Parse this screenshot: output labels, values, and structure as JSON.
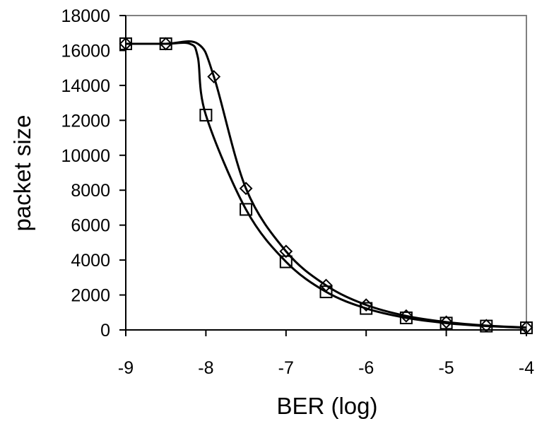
{
  "chart_data": {
    "type": "line",
    "title": "",
    "xlabel": "BER (log)",
    "ylabel": "packet size",
    "xlim": [
      -9,
      -4
    ],
    "ylim": [
      0,
      18000
    ],
    "xticks": [
      -9,
      -8,
      -7,
      -6,
      -5,
      -4
    ],
    "yticks": [
      0,
      2000,
      4000,
      6000,
      8000,
      10000,
      12000,
      14000,
      16000,
      18000
    ],
    "grid": false,
    "legend": "none",
    "series": [
      {
        "marker": "diamond",
        "x": [
          -9,
          -8.5,
          -8.1,
          -7.9,
          -7.5,
          -7,
          -6.5,
          -6,
          -5.5,
          -5,
          -4.5,
          -4
        ],
        "y": [
          16384,
          16384,
          16384,
          14500,
          8100,
          4500,
          2550,
          1430,
          800,
          450,
          250,
          140
        ],
        "marker_x": [
          -9,
          -8.5,
          -7.9,
          -7.5,
          -7,
          -6.5,
          -6,
          -5.5,
          -5,
          -4.5,
          -4
        ],
        "marker_y": [
          16384,
          16384,
          14500,
          8100,
          4500,
          2550,
          1430,
          800,
          450,
          250,
          140
        ]
      },
      {
        "marker": "square",
        "x": [
          -9,
          -8.5,
          -8.2,
          -8.1,
          -8,
          -7.5,
          -7,
          -6.5,
          -6,
          -5.5,
          -5,
          -4.5,
          -4
        ],
        "y": [
          16384,
          16384,
          16384,
          15600,
          12300,
          6900,
          3900,
          2180,
          1230,
          690,
          390,
          220,
          120
        ],
        "marker_x": [
          -9,
          -8.5,
          -8,
          -7.5,
          -7,
          -6.5,
          -6,
          -5.5,
          -5,
          -4.5,
          -4
        ],
        "marker_y": [
          16384,
          16384,
          12300,
          6900,
          3900,
          2180,
          1230,
          690,
          390,
          220,
          120
        ]
      }
    ]
  }
}
